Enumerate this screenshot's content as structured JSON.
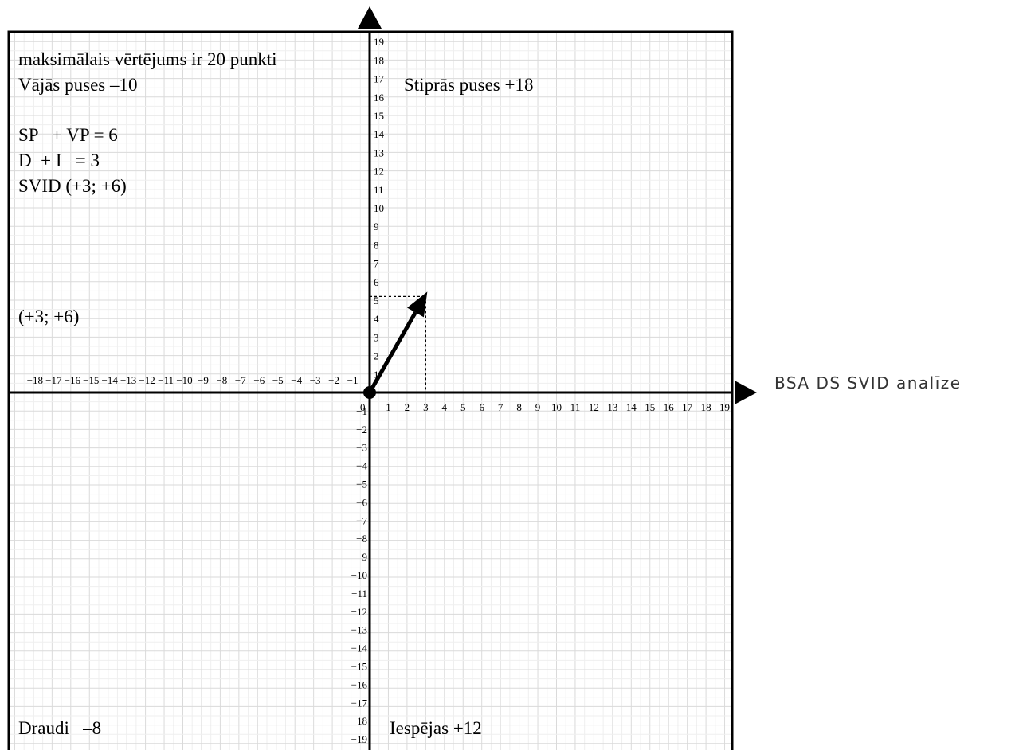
{
  "diagram": {
    "title": "BSA DS SVID analīze",
    "info": {
      "line1": "maksimālais vērtējums ir 20 punkti",
      "line2": "Vājās puses –10",
      "line3": "SP   + VP = 6",
      "line4": "D  + I   = 3",
      "line5": "SVID (+3; +6)",
      "point_label": "(+3; +6)"
    },
    "quadrants": {
      "strengths": "Stiprās puses +18",
      "opportunities": "Iespējas +12",
      "threats": "Draudi   –8"
    },
    "x_ticks_positive": [
      "1",
      "2",
      "3",
      "4",
      "5",
      "6",
      "7",
      "8",
      "9",
      "10",
      "11",
      "12",
      "13",
      "14",
      "15",
      "16",
      "17",
      "18",
      "19"
    ],
    "x_ticks_negative": [
      "−18",
      "−17",
      "−16",
      "−15",
      "−14",
      "−13",
      "−12",
      "−11",
      "−10",
      "−9",
      "−8",
      "−7",
      "−6",
      "−5",
      "−4",
      "−3",
      "−2",
      "−1"
    ],
    "y_ticks_positive": [
      "1",
      "2",
      "3",
      "4",
      "5",
      "6",
      "7",
      "8",
      "9",
      "10",
      "11",
      "12",
      "13",
      "14",
      "15",
      "16",
      "17",
      "18",
      "19"
    ],
    "y_ticks_negative": [
      "−1",
      "−2",
      "−3",
      "−4",
      "−5",
      "−6",
      "−7",
      "−8",
      "−9",
      "−10",
      "−11",
      "−12",
      "−13",
      "−14",
      "−15",
      "−16",
      "−17",
      "−18",
      "−19"
    ],
    "origin_label": "0",
    "vector": {
      "x": 3,
      "y": 6
    },
    "guide_point": {
      "x": 3,
      "y": 5.2
    }
  }
}
